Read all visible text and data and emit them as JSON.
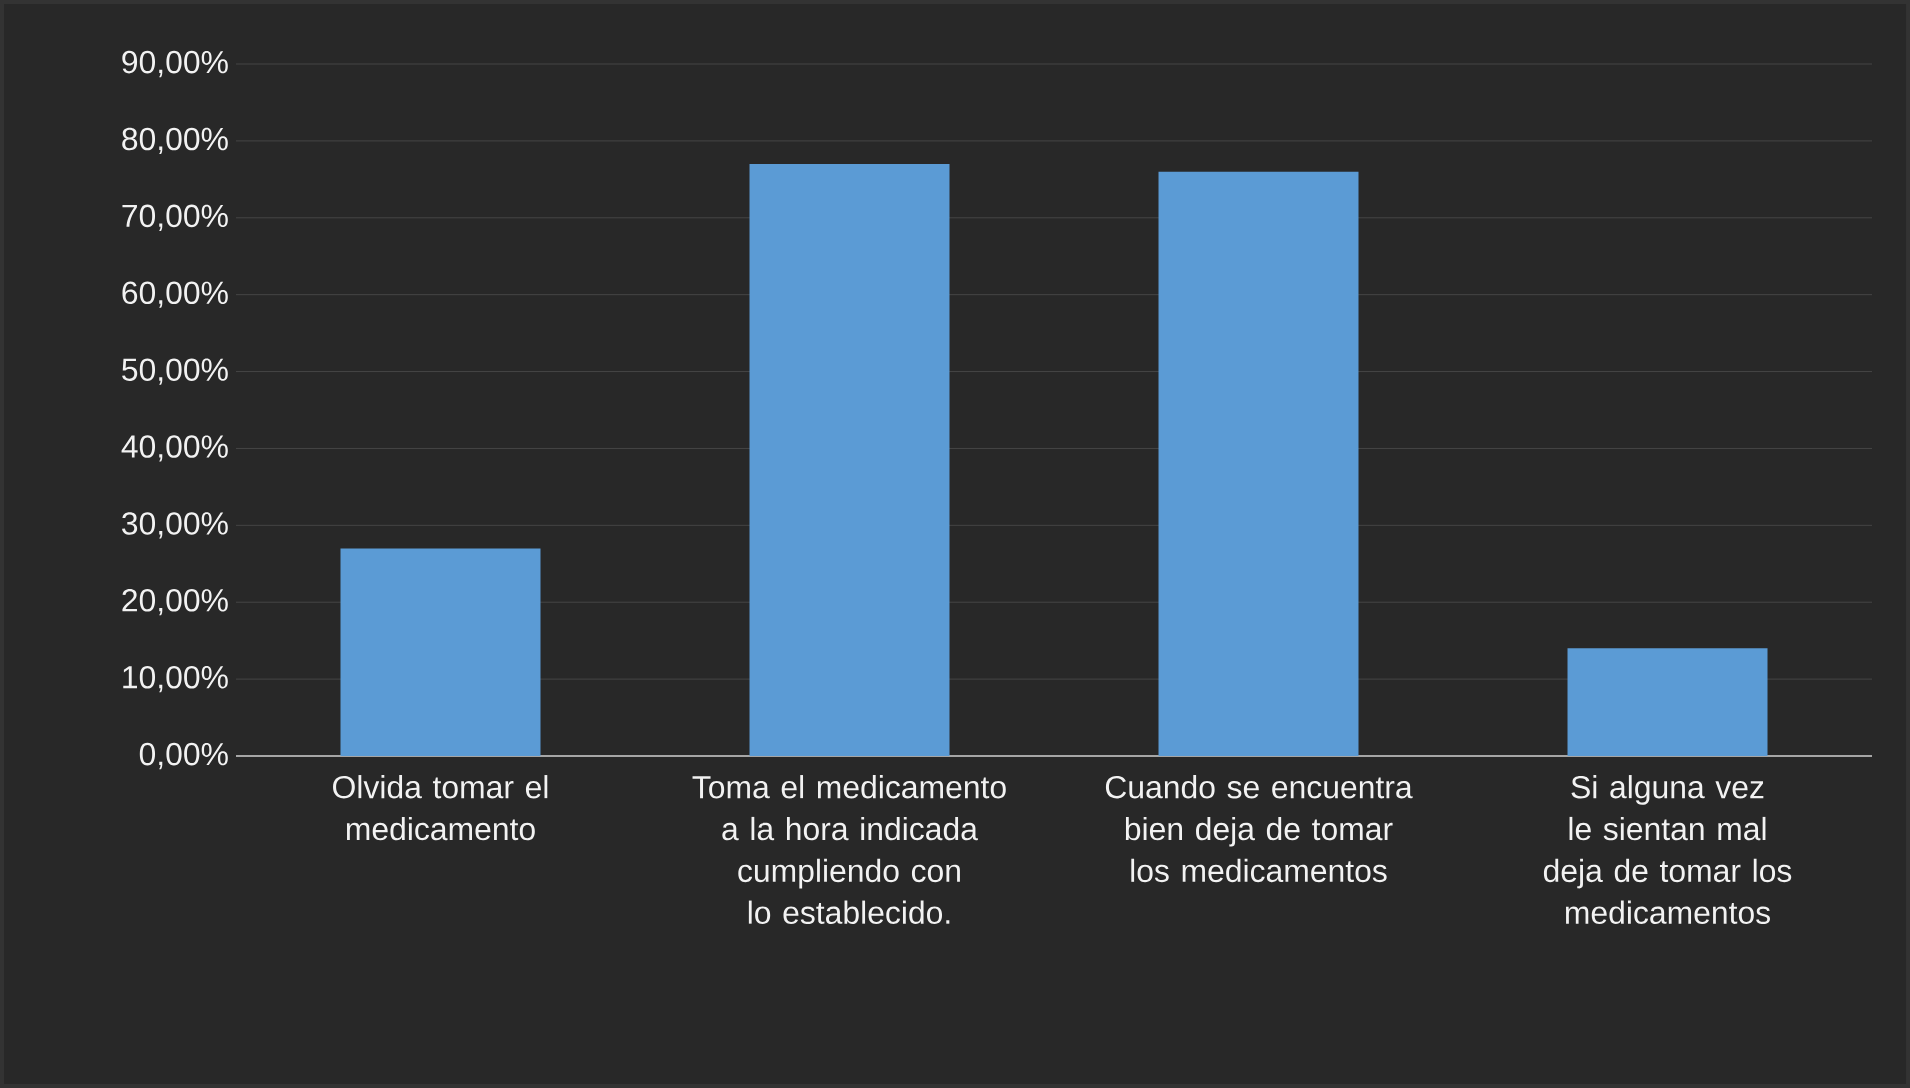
{
  "chart_data": {
    "type": "bar",
    "categories": [
      "Olvida tomar el medicamento",
      "Toma el medicamento a la hora indicada cumpliendo con lo establecido.",
      "Cuando se encuentra bien deja de tomar los medicamentos",
      "Si alguna vez le sientan mal deja de tomar los medicamentos"
    ],
    "values": [
      27,
      77,
      76,
      14
    ],
    "color": "#5b9bd5",
    "ylim": [
      0,
      90
    ],
    "yticks": [
      {
        "value": 0,
        "label": "0,00%"
      },
      {
        "value": 10,
        "label": "10,00%"
      },
      {
        "value": 20,
        "label": "20,00%"
      },
      {
        "value": 30,
        "label": "30,00%"
      },
      {
        "value": 40,
        "label": "40,00%"
      },
      {
        "value": 50,
        "label": "50,00%"
      },
      {
        "value": 60,
        "label": "60,00%"
      },
      {
        "value": 70,
        "label": "70,00%"
      },
      {
        "value": 80,
        "label": "80,00%"
      },
      {
        "value": 90,
        "label": "90,00%"
      }
    ],
    "grid": "y"
  }
}
